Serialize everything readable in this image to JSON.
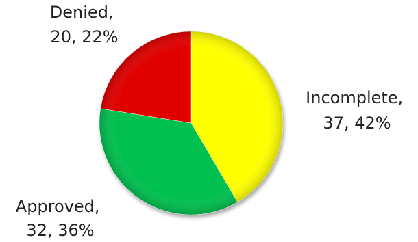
{
  "chart_data": {
    "type": "pie",
    "slices": [
      {
        "category": "Incomplete",
        "value": 37,
        "percent": "42%",
        "label_line1": "Incomplete,",
        "label_line2": "37, 42%",
        "color": "#FFFF00"
      },
      {
        "category": "Approved",
        "value": 32,
        "percent": "36%",
        "label_line1": "Approved,",
        "label_line2": "32, 36%",
        "color": "#00C050"
      },
      {
        "category": "Denied",
        "value": 20,
        "percent": "22%",
        "label_line1": "Denied,",
        "label_line2": "20, 22%",
        "color": "#E00000"
      }
    ],
    "start_angle_deg": 0,
    "direction": "clockwise",
    "legend": "none",
    "data_labels": "outside"
  }
}
